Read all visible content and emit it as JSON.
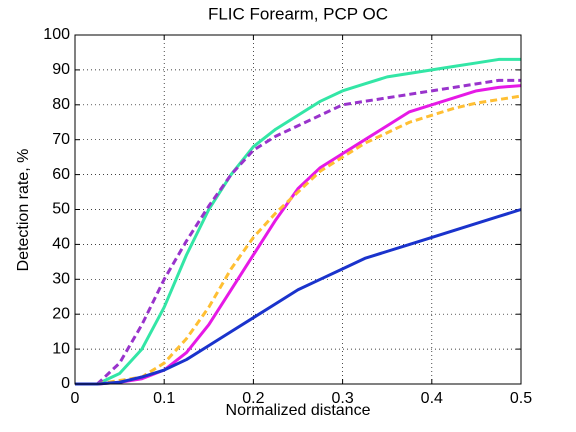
{
  "chart_data": {
    "type": "line",
    "title": "FLIC Forearm, PCP OC",
    "xlabel": "Normalized distance",
    "ylabel": "Detection rate, %",
    "x": [
      0,
      0.025,
      0.05,
      0.075,
      0.1,
      0.125,
      0.15,
      0.175,
      0.2,
      0.225,
      0.25,
      0.275,
      0.3,
      0.325,
      0.35,
      0.375,
      0.4,
      0.425,
      0.45,
      0.475,
      0.5
    ],
    "series": [
      {
        "color": "#33e6a6",
        "dashed": false,
        "values": [
          0,
          0,
          3,
          10,
          22,
          37,
          50,
          60,
          68,
          73,
          77,
          81,
          84,
          86,
          88,
          89,
          90,
          91,
          92,
          93,
          93
        ]
      },
      {
        "color": "#9933cc",
        "dashed": true,
        "values": [
          0,
          0,
          6,
          17,
          30,
          41,
          51,
          60,
          67,
          71,
          74,
          77,
          80,
          81,
          82,
          83,
          84,
          85,
          86,
          87,
          87
        ]
      },
      {
        "color": "#e619e6",
        "dashed": false,
        "values": [
          0,
          0,
          0.5,
          1.5,
          4,
          9,
          17,
          27,
          37,
          47,
          56,
          62,
          66,
          70,
          74,
          78,
          80,
          82,
          84,
          85,
          85.5
        ]
      },
      {
        "color": "#ffbf33",
        "dashed": true,
        "values": [
          0,
          0,
          1,
          2,
          6,
          13,
          22,
          33,
          42,
          49,
          55,
          61,
          65,
          69,
          72,
          75,
          77,
          79,
          80.5,
          81.5,
          82.5
        ]
      },
      {
        "color": "#1a33cc",
        "dashed": false,
        "values": [
          0,
          0,
          0.5,
          2,
          4,
          7,
          11,
          15,
          19,
          23,
          27,
          30,
          33,
          36,
          38,
          40,
          42,
          44,
          46,
          48,
          50
        ]
      }
    ],
    "xlim": [
      0,
      0.5
    ],
    "xticks": [
      0,
      0.1,
      0.2,
      0.3,
      0.4,
      0.5
    ],
    "ylim": [
      0,
      100
    ],
    "yticks": [
      0,
      10,
      20,
      30,
      40,
      50,
      60,
      70,
      80,
      90,
      100
    ],
    "grid": true
  }
}
